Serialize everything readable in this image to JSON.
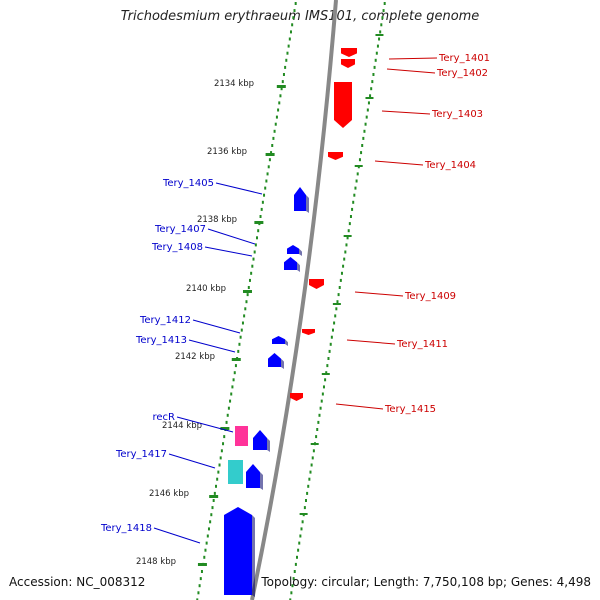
{
  "title": "Trichodesmium erythraeum IMS101, complete genome",
  "footer": {
    "accession": "Accession: NC_008312",
    "summary": "Topology: circular; Length: 7,750,108 bp; Genes: 4,498"
  },
  "colors": {
    "forward_gene": "#0000ff",
    "reverse_gene": "#ff0000",
    "recR": "#ff3399",
    "tery_1417_extra": "#33cccc",
    "tick": "#228b22",
    "backbone": "#888888",
    "forward_label": "#0000cc",
    "reverse_label": "#cc0000"
  },
  "scale_labels": [
    "2134 kbp",
    "2136 kbp",
    "2138 kbp",
    "2140 kbp",
    "2142 kbp",
    "2144 kbp",
    "2146 kbp",
    "2148 kbp"
  ],
  "forward_labels": [
    "Tery_1405",
    "Tery_1407",
    "Tery_1408",
    "Tery_1412",
    "Tery_1413",
    "recR",
    "Tery_1417",
    "Tery_1418"
  ],
  "reverse_labels": [
    "Tery_1401",
    "Tery_1402",
    "Tery_1403",
    "Tery_1404",
    "Tery_1409",
    "Tery_1411",
    "Tery_1415"
  ]
}
